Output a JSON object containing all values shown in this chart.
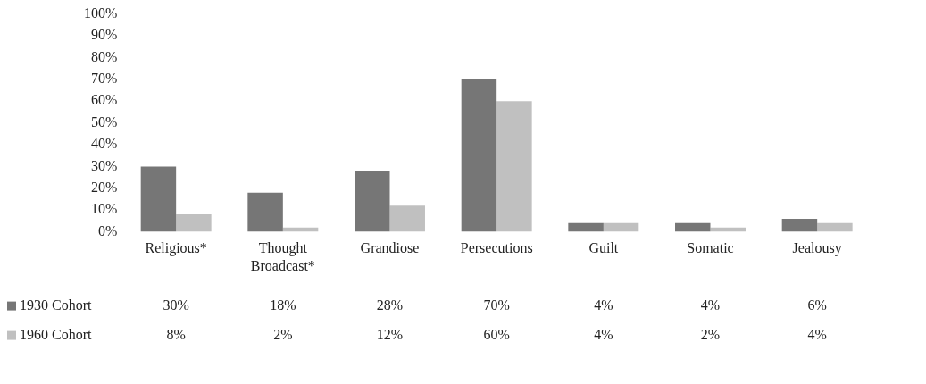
{
  "chart_data": {
    "type": "bar",
    "categories": [
      "Religious*",
      "Thought Broadcast*",
      "Grandiose",
      "Persecutions",
      "Guilt",
      "Somatic",
      "Jealousy"
    ],
    "series": [
      {
        "name": "1930 Cohort",
        "color": "#767676",
        "values": [
          30,
          18,
          28,
          70,
          4,
          4,
          6
        ],
        "value_labels": [
          "30%",
          "18%",
          "28%",
          "70%",
          "4%",
          "4%",
          "6%"
        ]
      },
      {
        "name": "1960 Cohort",
        "color": "#c0c0c0",
        "values": [
          8,
          2,
          12,
          60,
          4,
          2,
          4
        ],
        "value_labels": [
          "8%",
          "2%",
          "12%",
          "60%",
          "4%",
          "2%",
          "4%"
        ]
      }
    ],
    "ylim": [
      0,
      100
    ],
    "yticks": [
      {
        "value": 0,
        "label": "0%"
      },
      {
        "value": 10,
        "label": "10%"
      },
      {
        "value": 20,
        "label": "20%"
      },
      {
        "value": 30,
        "label": "30%"
      },
      {
        "value": 40,
        "label": "40%"
      },
      {
        "value": 50,
        "label": "50%"
      },
      {
        "value": 60,
        "label": "60%"
      },
      {
        "value": 70,
        "label": "70%"
      },
      {
        "value": 80,
        "label": "80%"
      },
      {
        "value": 90,
        "label": "90%"
      },
      {
        "value": 100,
        "label": "100%"
      }
    ],
    "grid": false,
    "legend": "bottom left"
  }
}
